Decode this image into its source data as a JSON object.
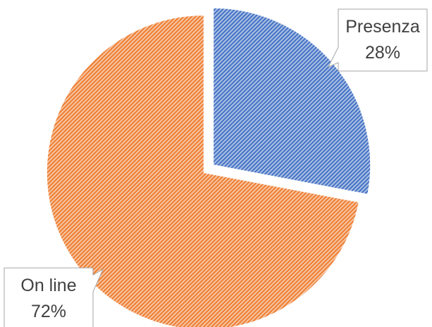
{
  "chart_data": {
    "type": "pie",
    "title": "",
    "slices": [
      {
        "label": "Presenza",
        "value": 28,
        "value_label": "28%",
        "color": "#4472C4"
      },
      {
        "label": "On line",
        "value": 72,
        "value_label": "72%",
        "color": "#ED7D31"
      }
    ],
    "legend": "none",
    "fill_pattern": "diagonal-stripes",
    "start_angle": "12 o'clock",
    "direction": "clockwise",
    "exploded": true
  }
}
